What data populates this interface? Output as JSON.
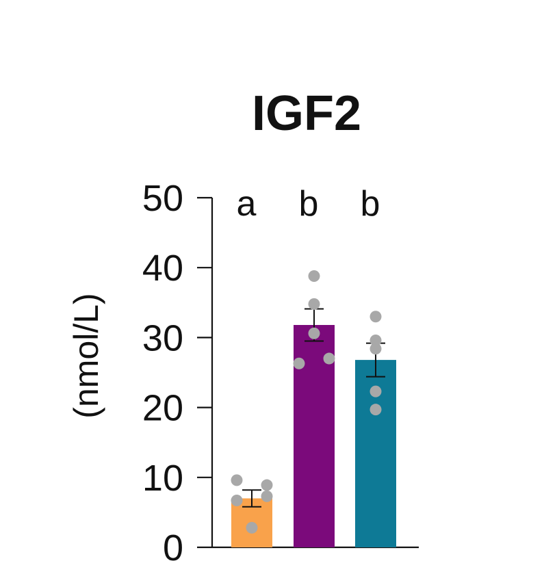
{
  "chart_data": {
    "type": "bar",
    "title": "IGF2",
    "xlabel": "",
    "ylabel": "(nmol/L)",
    "ylim": [
      0,
      50
    ],
    "yticks": [
      0,
      10,
      20,
      30,
      40,
      50
    ],
    "grid": false,
    "categories": [
      "",
      "",
      ""
    ],
    "values": [
      7.0,
      31.8,
      26.8
    ],
    "errors": [
      1.2,
      2.3,
      2.4
    ],
    "significance": [
      "a",
      "b",
      "b"
    ],
    "colors": [
      "#F9A24B",
      "#7B0A7B",
      "#0E7A96"
    ],
    "point_color": "#A8A8A8",
    "points": [
      [
        9.6,
        7.3,
        6.7,
        8.9,
        2.8
      ],
      [
        38.8,
        34.8,
        30.6,
        27.0,
        26.3
      ],
      [
        33.0,
        29.6,
        28.4,
        22.3,
        19.7
      ]
    ]
  }
}
